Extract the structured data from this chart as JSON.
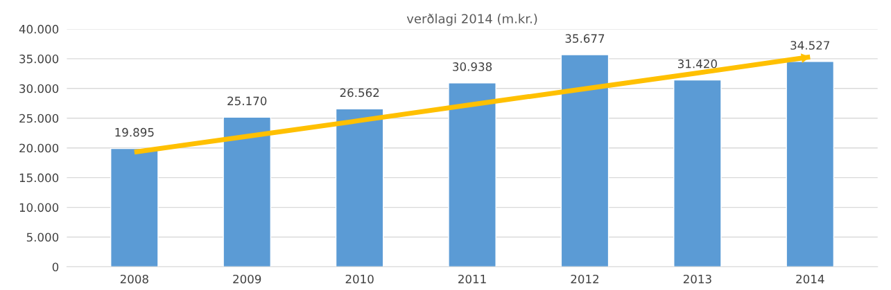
{
  "chart_data": {
    "type": "bar",
    "title": "verðlagi 2014 (m.kr.)",
    "categories": [
      "2008",
      "2009",
      "2010",
      "2011",
      "2012",
      "2013",
      "2014"
    ],
    "series": [
      {
        "color": "#5b9bd5",
        "values": [
          19895,
          25170,
          26562,
          30938,
          35677,
          31420,
          34527
        ],
        "value_labels": [
          "19.895",
          "25.170",
          "26.562",
          "30.938",
          "35.677",
          "31.420",
          "34.527"
        ]
      },
      {
        "type": "line",
        "color": "#ffc000",
        "values": [
          19300,
          21950,
          24600,
          27300,
          29950,
          32600,
          35300
        ]
      }
    ],
    "ylim": [
      0,
      40000
    ],
    "yticks": [
      {
        "value": 0,
        "label": "0"
      },
      {
        "value": 5000,
        "label": "5.000"
      },
      {
        "value": 10000,
        "label": "10.000"
      },
      {
        "value": 15000,
        "label": "15.000"
      },
      {
        "value": 20000,
        "label": "20.000"
      },
      {
        "value": 25000,
        "label": "25.000"
      },
      {
        "value": 30000,
        "label": "30.000"
      },
      {
        "value": 35000,
        "label": "35.000"
      },
      {
        "value": 40000,
        "label": "40.000"
      }
    ],
    "grid": "y",
    "legend": false
  }
}
